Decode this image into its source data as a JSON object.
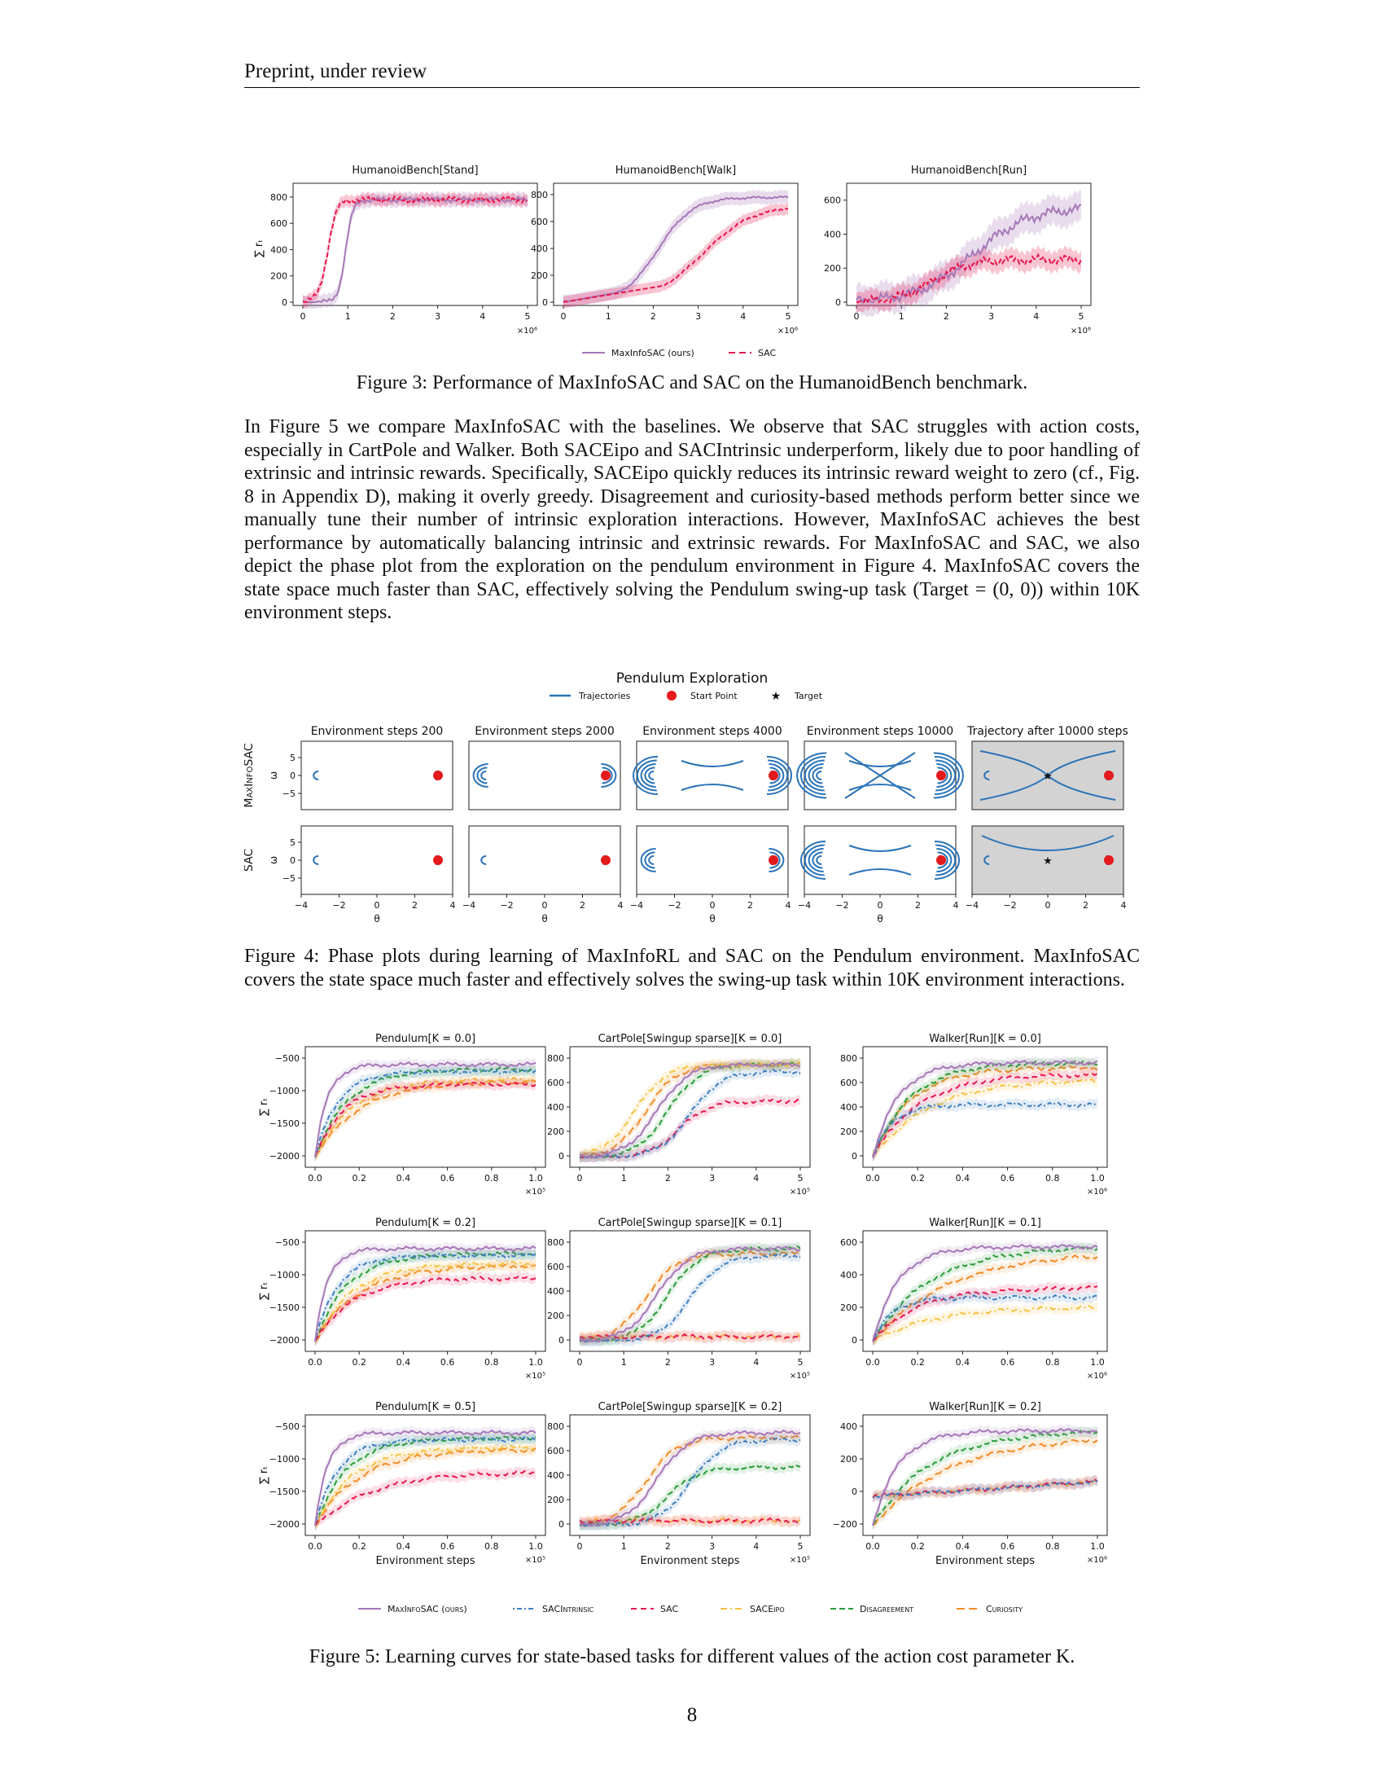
{
  "header": "Preprint, under review",
  "fig3": {
    "panels": [
      {
        "title": "HumanoidBench[Stand]",
        "yticks": [
          "0",
          "200",
          "400",
          "600",
          "800"
        ],
        "yvals": [
          0,
          200,
          400,
          600,
          800
        ],
        "ymax": 880
      },
      {
        "title": "HumanoidBench[Walk]",
        "yticks": [
          "0",
          "200",
          "400",
          "600",
          "800"
        ],
        "yvals": [
          0,
          200,
          400,
          600,
          800
        ],
        "ymax": 860
      },
      {
        "title": "HumanoidBench[Run]",
        "yticks": [
          "0",
          "200",
          "400",
          "600"
        ],
        "yvals": [
          0,
          200,
          400,
          600
        ],
        "ymax": 680
      }
    ],
    "xticks": [
      "0",
      "1",
      "2",
      "3",
      "4",
      "5"
    ],
    "xmult": "×10⁶",
    "ylabel": "∑ rₜ",
    "legend": [
      {
        "label": "MaxInfoSAC (ours)",
        "color": "#a678b8",
        "dash": ""
      },
      {
        "label": "SAC",
        "color": "#e8174f",
        "dash": "8,5"
      }
    ],
    "caption": "Figure 3: Performance of MaxInfoSAC and SAC on the HumanoidBench benchmark."
  },
  "paragraph": "In Figure 5 we compare MaxInfoSAC with the baselines. We observe that SAC struggles with action costs, especially in CartPole and Walker. Both SACEipo and SACIntrinsic underperform, likely due to poor handling of extrinsic and intrinsic rewards. Specifically, SACEipo quickly reduces its intrinsic reward weight to zero (cf., Fig. 8 in Appendix D), making it overly greedy. Disagreement and curiosity-based methods perform better since we manually tune their number of intrinsic exploration interactions. However, MaxInfoSAC achieves the best performance by automatically balancing intrinsic and extrinsic rewards. For MaxInfoSAC and SAC, we also depict the phase plot from the exploration on the pendulum environment in Figure 4. MaxInfoSAC covers the state space much faster than SAC, effectively solving the Pendulum swing-up task (Target = (0, 0)) within 10K environment steps.",
  "fig4": {
    "title": "Pendulum Exploration",
    "legend": [
      {
        "label": "Trajectories",
        "color": "#2a73b8",
        "kind": "line"
      },
      {
        "label": "Start Point",
        "color": "#e41a1c",
        "kind": "dot"
      },
      {
        "label": "Target",
        "color": "#f5c518",
        "kind": "star"
      }
    ],
    "columns": [
      "Environment steps 200",
      "Environment steps 2000",
      "Environment steps 4000",
      "Environment steps 10000",
      "Trajectory after 10000 steps"
    ],
    "rows": [
      "MaxInfoSAC",
      "SAC"
    ],
    "ylabel": "ω",
    "xlabel": "θ",
    "yticks": [
      "5",
      "0",
      "−5"
    ],
    "xticks": [
      "−4",
      "−2",
      "0",
      "2",
      "4"
    ],
    "caption": "Figure 4: Phase plots during learning of MaxInfoRL and SAC on the Pendulum environment. MaxInfoSAC covers the state space much faster and effectively solves the swing-up task within 10K environment interactions."
  },
  "fig5": {
    "rows": [
      [
        {
          "title": "Pendulum[K = 0.0]",
          "yticks": [
            "−500",
            "−1000",
            "−1500",
            "−2000"
          ],
          "xticks": [
            "0.0",
            "0.2",
            "0.4",
            "0.6",
            "0.8",
            "1.0"
          ],
          "xmult": "×10⁵"
        },
        {
          "title": "CartPole[Swingup sparse][K = 0.0]",
          "yticks": [
            "800",
            "600",
            "400",
            "200",
            "0"
          ],
          "xticks": [
            "0",
            "1",
            "2",
            "3",
            "4",
            "5"
          ],
          "xmult": "×10⁵"
        },
        {
          "title": "Walker[Run][K = 0.0]",
          "yticks": [
            "800",
            "600",
            "400",
            "200",
            "0"
          ],
          "xticks": [
            "0.0",
            "0.2",
            "0.4",
            "0.6",
            "0.8",
            "1.0"
          ],
          "xmult": "×10⁶"
        }
      ],
      [
        {
          "title": "Pendulum[K = 0.2]",
          "yticks": [
            "−500",
            "−1000",
            "−1500",
            "−2000"
          ],
          "xticks": [
            "0.0",
            "0.2",
            "0.4",
            "0.6",
            "0.8",
            "1.0"
          ],
          "xmult": "×10⁵"
        },
        {
          "title": "CartPole[Swingup sparse][K = 0.1]",
          "yticks": [
            "800",
            "600",
            "400",
            "200",
            "0"
          ],
          "xticks": [
            "0",
            "1",
            "2",
            "3",
            "4",
            "5"
          ],
          "xmult": "×10⁵"
        },
        {
          "title": "Walker[Run][K = 0.1]",
          "yticks": [
            "600",
            "400",
            "200",
            "0"
          ],
          "xticks": [
            "0.0",
            "0.2",
            "0.4",
            "0.6",
            "0.8",
            "1.0"
          ],
          "xmult": "×10⁶"
        }
      ],
      [
        {
          "title": "Pendulum[K = 0.5]",
          "yticks": [
            "−500",
            "−1000",
            "−1500",
            "−2000"
          ],
          "xticks": [
            "0.0",
            "0.2",
            "0.4",
            "0.6",
            "0.8",
            "1.0"
          ],
          "xmult": "×10⁵"
        },
        {
          "title": "CartPole[Swingup sparse][K = 0.2]",
          "yticks": [
            "800",
            "600",
            "400",
            "200",
            "0"
          ],
          "xticks": [
            "0",
            "1",
            "2",
            "3",
            "4",
            "5"
          ],
          "xmult": "×10⁵"
        },
        {
          "title": "Walker[Run][K = 0.2]",
          "yticks": [
            "400",
            "200",
            "0",
            "−200"
          ],
          "xticks": [
            "0.0",
            "0.2",
            "0.4",
            "0.6",
            "0.8",
            "1.0"
          ],
          "xmult": "×10⁶"
        }
      ]
    ],
    "ylabel": "∑ rₜ",
    "xlabel": "Environment steps",
    "legend": [
      {
        "label": "MaxInfoSAC (ours)",
        "color": "#a678b8",
        "dash": ""
      },
      {
        "label": "SACIntrinsic",
        "color": "#3f7fbf",
        "dash": "2,3,6,3"
      },
      {
        "label": "SAC",
        "color": "#e8174f",
        "dash": "7,5"
      },
      {
        "label": "SACEipo",
        "color": "#f5c242",
        "dash": "8,4,2,4"
      },
      {
        "label": "Disagreement",
        "color": "#2a9d3a",
        "dash": "7,4"
      },
      {
        "label": "Curiosity",
        "color": "#f28c28",
        "dash": "10,5"
      }
    ],
    "caption": "Figure 5: Learning curves for state-based tasks for different values of the action cost parameter K."
  },
  "page_number": "8"
}
